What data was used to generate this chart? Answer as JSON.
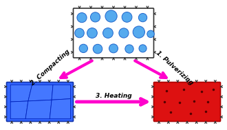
{
  "bg_color": "#ffffff",
  "arrow_color": "#FF00CC",
  "pressure_arrow_color": "#333333",
  "box_white_fill": "#ffffff",
  "box_white_edge": "#333333",
  "box_blue_fill": "#3366FF",
  "box_blue_edge": "#1133AA",
  "box_red_fill": "#DD1111",
  "box_red_edge": "#AA0000",
  "circle_fill": "#55AAEE",
  "circle_edge": "#2266CC",
  "cell_fill": "#4477FF",
  "cell_edge": "#0022BB",
  "label_color": "#000000",
  "step1_label": "1. Pulverizing",
  "step2_label": "2. Compacting",
  "step3_label": "3. Heating",
  "font_size": 6.5,
  "arrow_lw": 3.0
}
